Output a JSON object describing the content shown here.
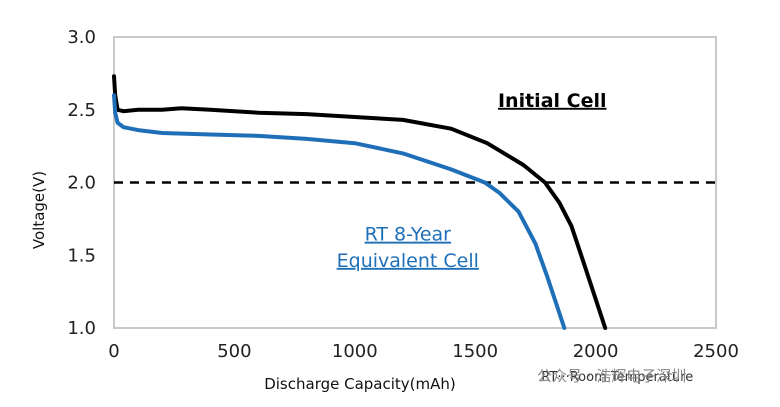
{
  "chart_data": {
    "type": "line",
    "xlabel": "Discharge Capacity(mAh)",
    "ylabel": "Voltage(V)",
    "xlim": [
      0,
      2500
    ],
    "ylim": [
      1.0,
      3.0
    ],
    "x_ticks": [
      "0",
      "500",
      "1000",
      "1500",
      "2000",
      "2500"
    ],
    "y_ticks": [
      "1.0",
      "1.5",
      "2.0",
      "2.5",
      "3.0"
    ],
    "grid": false,
    "reference_line": {
      "y": 2.0,
      "style": "dashed",
      "color": "#000000"
    },
    "series": [
      {
        "name": "Initial Cell",
        "color": "#000000",
        "points": [
          [
            0,
            2.73
          ],
          [
            5,
            2.6
          ],
          [
            15,
            2.5
          ],
          [
            40,
            2.49
          ],
          [
            100,
            2.5
          ],
          [
            200,
            2.5
          ],
          [
            280,
            2.51
          ],
          [
            400,
            2.5
          ],
          [
            600,
            2.48
          ],
          [
            800,
            2.47
          ],
          [
            1000,
            2.45
          ],
          [
            1200,
            2.43
          ],
          [
            1400,
            2.37
          ],
          [
            1550,
            2.27
          ],
          [
            1700,
            2.12
          ],
          [
            1790,
            2.0
          ],
          [
            1850,
            1.86
          ],
          [
            1900,
            1.7
          ],
          [
            1950,
            1.45
          ],
          [
            2000,
            1.2
          ],
          [
            2040,
            1.0
          ]
        ]
      },
      {
        "name": "RT 8-Year Equivalent Cell",
        "color": "#1f6fb8",
        "points": [
          [
            0,
            2.6
          ],
          [
            5,
            2.48
          ],
          [
            15,
            2.41
          ],
          [
            40,
            2.38
          ],
          [
            100,
            2.36
          ],
          [
            200,
            2.34
          ],
          [
            400,
            2.33
          ],
          [
            600,
            2.32
          ],
          [
            800,
            2.3
          ],
          [
            1000,
            2.27
          ],
          [
            1200,
            2.2
          ],
          [
            1400,
            2.09
          ],
          [
            1540,
            2.0
          ],
          [
            1600,
            1.93
          ],
          [
            1680,
            1.8
          ],
          [
            1750,
            1.58
          ],
          [
            1800,
            1.35
          ],
          [
            1840,
            1.15
          ],
          [
            1870,
            1.0
          ]
        ]
      }
    ],
    "annotations": [
      {
        "text": "Initial Cell",
        "x": 1820,
        "y": 2.52
      },
      {
        "text": "RT 8-Year",
        "x": 1220,
        "y": 1.6
      },
      {
        "text": "Equivalent Cell",
        "x": 1220,
        "y": 1.42
      },
      {
        "text": "RT···Room Temperature",
        "x": 2090,
        "y": 0.84
      }
    ]
  },
  "watermark": "公众号 · 浩辉电子深圳"
}
